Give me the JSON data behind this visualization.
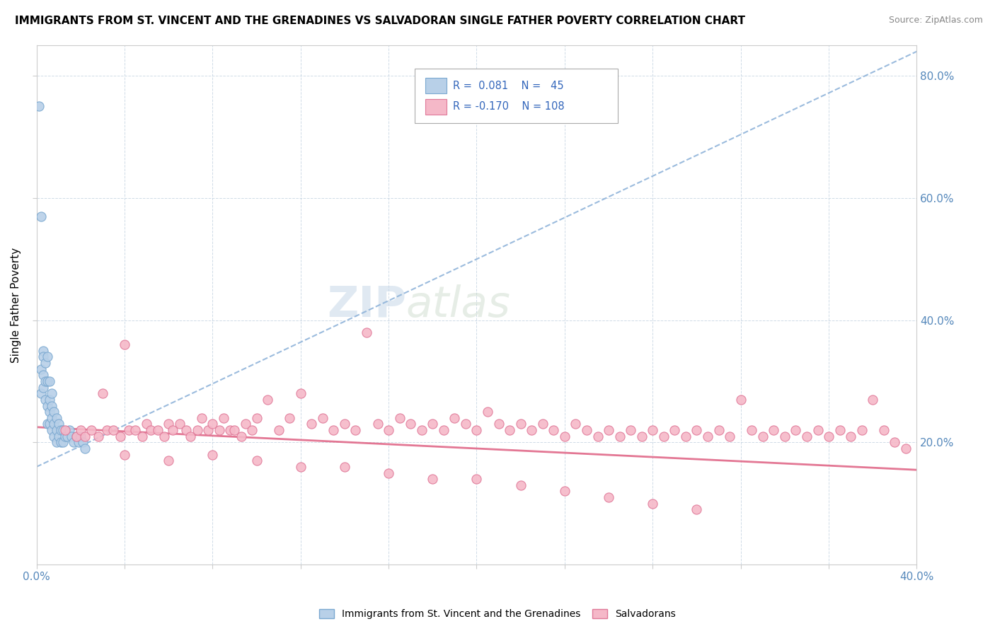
{
  "title": "IMMIGRANTS FROM ST. VINCENT AND THE GRENADINES VS SALVADORAN SINGLE FATHER POVERTY CORRELATION CHART",
  "source": "Source: ZipAtlas.com",
  "ylabel": "Single Father Poverty",
  "xlim": [
    0.0,
    0.4
  ],
  "ylim": [
    0.0,
    0.85
  ],
  "color_blue": "#b8d0e8",
  "color_blue_edge": "#7aa8d0",
  "color_pink": "#f5b8c8",
  "color_pink_edge": "#e07898",
  "color_blue_line": "#8ab0d8",
  "color_pink_line": "#e06888",
  "watermark_zip": "ZIP",
  "watermark_atlas": "atlas",
  "blue_x": [
    0.001,
    0.002,
    0.002,
    0.002,
    0.003,
    0.003,
    0.003,
    0.003,
    0.004,
    0.004,
    0.004,
    0.005,
    0.005,
    0.005,
    0.005,
    0.006,
    0.006,
    0.006,
    0.006,
    0.007,
    0.007,
    0.007,
    0.007,
    0.008,
    0.008,
    0.008,
    0.009,
    0.009,
    0.009,
    0.01,
    0.01,
    0.011,
    0.011,
    0.012,
    0.012,
    0.013,
    0.014,
    0.015,
    0.016,
    0.017,
    0.018,
    0.019,
    0.02,
    0.021,
    0.022
  ],
  "blue_y": [
    0.75,
    0.57,
    0.32,
    0.28,
    0.35,
    0.34,
    0.31,
    0.29,
    0.33,
    0.3,
    0.27,
    0.34,
    0.3,
    0.26,
    0.23,
    0.3,
    0.27,
    0.25,
    0.23,
    0.28,
    0.26,
    0.24,
    0.22,
    0.25,
    0.23,
    0.21,
    0.24,
    0.22,
    0.2,
    0.23,
    0.21,
    0.22,
    0.2,
    0.22,
    0.2,
    0.21,
    0.21,
    0.22,
    0.21,
    0.2,
    0.21,
    0.2,
    0.21,
    0.2,
    0.19
  ],
  "pink_x": [
    0.013,
    0.018,
    0.02,
    0.022,
    0.025,
    0.028,
    0.03,
    0.032,
    0.035,
    0.038,
    0.04,
    0.042,
    0.045,
    0.048,
    0.05,
    0.052,
    0.055,
    0.058,
    0.06,
    0.062,
    0.065,
    0.068,
    0.07,
    0.073,
    0.075,
    0.078,
    0.08,
    0.083,
    0.085,
    0.088,
    0.09,
    0.093,
    0.095,
    0.098,
    0.1,
    0.105,
    0.11,
    0.115,
    0.12,
    0.125,
    0.13,
    0.135,
    0.14,
    0.145,
    0.15,
    0.155,
    0.16,
    0.165,
    0.17,
    0.175,
    0.18,
    0.185,
    0.19,
    0.195,
    0.2,
    0.205,
    0.21,
    0.215,
    0.22,
    0.225,
    0.23,
    0.235,
    0.24,
    0.245,
    0.25,
    0.255,
    0.26,
    0.265,
    0.27,
    0.275,
    0.28,
    0.285,
    0.29,
    0.295,
    0.3,
    0.305,
    0.31,
    0.315,
    0.32,
    0.325,
    0.33,
    0.335,
    0.34,
    0.345,
    0.35,
    0.355,
    0.36,
    0.365,
    0.37,
    0.375,
    0.38,
    0.385,
    0.39,
    0.395,
    0.04,
    0.06,
    0.08,
    0.1,
    0.12,
    0.14,
    0.16,
    0.18,
    0.2,
    0.22,
    0.24,
    0.26,
    0.28,
    0.3
  ],
  "pink_y": [
    0.22,
    0.21,
    0.22,
    0.21,
    0.22,
    0.21,
    0.28,
    0.22,
    0.22,
    0.21,
    0.36,
    0.22,
    0.22,
    0.21,
    0.23,
    0.22,
    0.22,
    0.21,
    0.23,
    0.22,
    0.23,
    0.22,
    0.21,
    0.22,
    0.24,
    0.22,
    0.23,
    0.22,
    0.24,
    0.22,
    0.22,
    0.21,
    0.23,
    0.22,
    0.24,
    0.27,
    0.22,
    0.24,
    0.28,
    0.23,
    0.24,
    0.22,
    0.23,
    0.22,
    0.38,
    0.23,
    0.22,
    0.24,
    0.23,
    0.22,
    0.23,
    0.22,
    0.24,
    0.23,
    0.22,
    0.25,
    0.23,
    0.22,
    0.23,
    0.22,
    0.23,
    0.22,
    0.21,
    0.23,
    0.22,
    0.21,
    0.22,
    0.21,
    0.22,
    0.21,
    0.22,
    0.21,
    0.22,
    0.21,
    0.22,
    0.21,
    0.22,
    0.21,
    0.27,
    0.22,
    0.21,
    0.22,
    0.21,
    0.22,
    0.21,
    0.22,
    0.21,
    0.22,
    0.21,
    0.22,
    0.27,
    0.22,
    0.2,
    0.19,
    0.18,
    0.17,
    0.18,
    0.17,
    0.16,
    0.16,
    0.15,
    0.14,
    0.14,
    0.13,
    0.12,
    0.11,
    0.1,
    0.09
  ],
  "blue_line_x": [
    0.0,
    0.4
  ],
  "blue_line_y": [
    0.16,
    0.84
  ],
  "pink_line_x": [
    0.0,
    0.4
  ],
  "pink_line_y": [
    0.225,
    0.155
  ]
}
